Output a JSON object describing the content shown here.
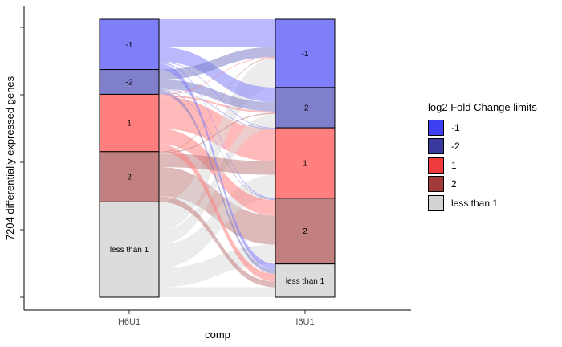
{
  "chart_data": {
    "type": "alluvial",
    "ylabel": "7204 differentially expressed genes",
    "xlabel": "comp",
    "axes": [
      "H6U1",
      "I6U1"
    ],
    "total": 7204,
    "strata": {
      "H6U1": [
        {
          "label": "-1",
          "count": 1303,
          "color": "#7f7ffa"
        },
        {
          "label": "-2",
          "count": 642,
          "color": "#7f7fcb"
        },
        {
          "label": "1",
          "count": 1486,
          "color": "#ff7f7f"
        },
        {
          "label": "2",
          "count": 1304,
          "color": "#c17f7f"
        },
        {
          "label": "less than 1",
          "count": 2469,
          "color": "#dcdcdc"
        }
      ],
      "I6U1": [
        {
          "label": "-1",
          "count": 1768,
          "color": "#7f7ffa"
        },
        {
          "label": "-2",
          "count": 1045,
          "color": "#7f7fcb"
        },
        {
          "label": "1",
          "count": 1826,
          "color": "#ff7f7f"
        },
        {
          "label": "2",
          "count": 1704,
          "color": "#c17f7f"
        },
        {
          "label": "less than 1",
          "count": 861,
          "color": "#dcdcdc"
        }
      ]
    },
    "flows": [
      {
        "from": "-1",
        "to": "-1",
        "count": 720
      },
      {
        "from": "-1",
        "to": "-2",
        "count": 380
      },
      {
        "from": "-1",
        "to": "1",
        "count": 20
      },
      {
        "from": "-1",
        "to": "2",
        "count": 30
      },
      {
        "from": "-1",
        "to": "less than 1",
        "count": 153
      },
      {
        "from": "-2",
        "to": "-1",
        "count": 260
      },
      {
        "from": "-2",
        "to": "-2",
        "count": 240
      },
      {
        "from": "-2",
        "to": "1",
        "count": 20
      },
      {
        "from": "-2",
        "to": "2",
        "count": 20
      },
      {
        "from": "-2",
        "to": "less than 1",
        "count": 102
      },
      {
        "from": "1",
        "to": "-1",
        "count": 20
      },
      {
        "from": "1",
        "to": "-2",
        "count": 40
      },
      {
        "from": "1",
        "to": "1",
        "count": 830
      },
      {
        "from": "1",
        "to": "2",
        "count": 400
      },
      {
        "from": "1",
        "to": "less than 1",
        "count": 196
      },
      {
        "from": "2",
        "to": "-1",
        "count": 20
      },
      {
        "from": "2",
        "to": "-2",
        "count": 30
      },
      {
        "from": "2",
        "to": "1",
        "count": 350
      },
      {
        "from": "2",
        "to": "2",
        "count": 754
      },
      {
        "from": "2",
        "to": "less than 1",
        "count": 150
      },
      {
        "from": "less than 1",
        "to": "-1",
        "count": 748
      },
      {
        "from": "less than 1",
        "to": "-2",
        "count": 355
      },
      {
        "from": "less than 1",
        "to": "1",
        "count": 606
      },
      {
        "from": "less than 1",
        "to": "2",
        "count": 500
      },
      {
        "from": "less than 1",
        "to": "less than 1",
        "count": 260
      }
    ],
    "legend": {
      "title": "log2 Fold Change limits",
      "position": "right",
      "items": [
        {
          "label": "-1",
          "color": "#3f3ff2"
        },
        {
          "label": "-2",
          "color": "#3a3a9e"
        },
        {
          "label": "1",
          "color": "#ee3b3b"
        },
        {
          "label": "2",
          "color": "#a33a3a"
        },
        {
          "label": "less than 1",
          "color": "#d3d3d3"
        }
      ]
    },
    "grid": false
  }
}
